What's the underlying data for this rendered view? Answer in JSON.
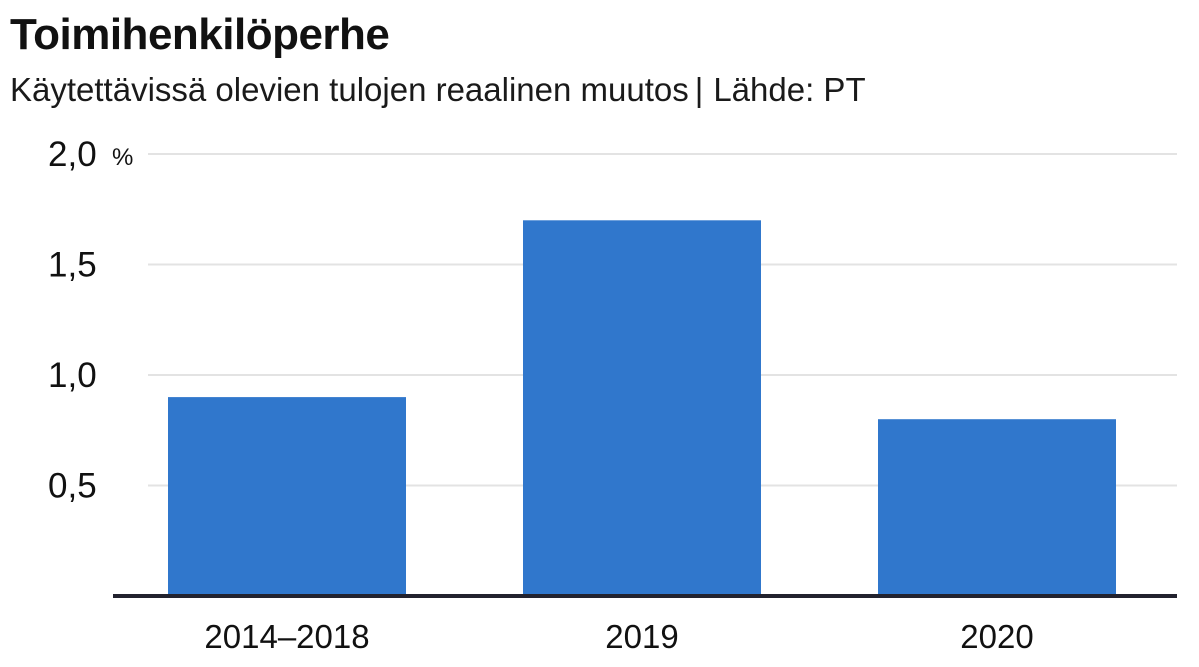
{
  "chart_data": {
    "type": "bar",
    "title": "Toimihenkilöperhe",
    "subtitle": "Käytettävissä olevien tulojen reaalinen muutos",
    "source": "Lähde: PT",
    "categories": [
      "2014–2018",
      "2019",
      "2020"
    ],
    "values": [
      0.9,
      1.7,
      0.8
    ],
    "ylim": [
      0,
      2.0
    ],
    "yticks": [
      0.5,
      1.0,
      1.5,
      2.0
    ],
    "ytick_labels": [
      "0,5",
      "1,0",
      "1,5",
      "2,0"
    ],
    "y_unit": "%",
    "grid": true,
    "bar_color": "#3077cc",
    "grid_color": "#e3e3e3",
    "axis_color": "#22222e"
  }
}
